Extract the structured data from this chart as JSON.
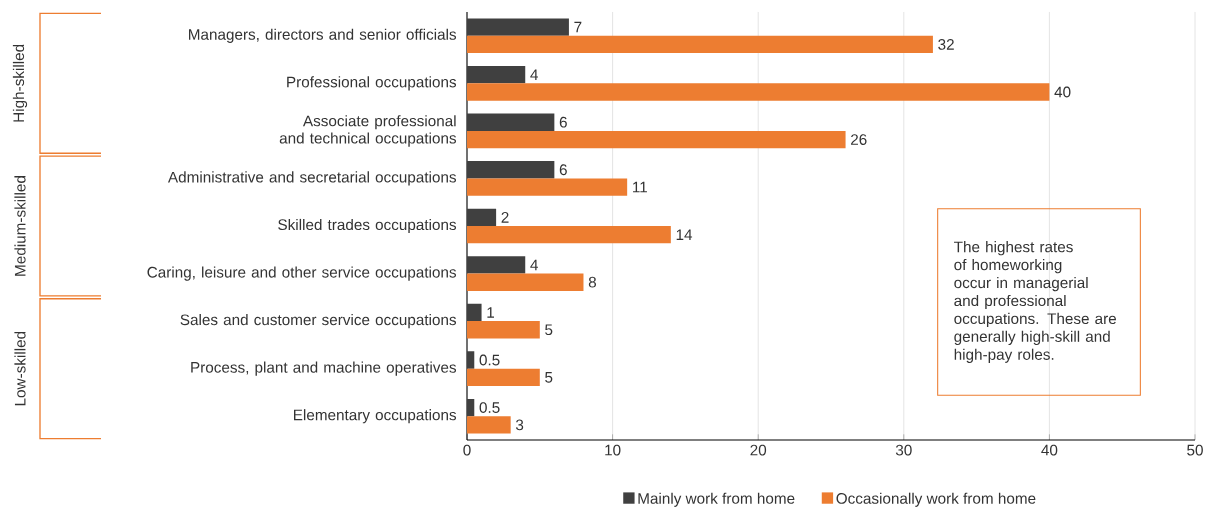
{
  "chart_data": {
    "type": "bar",
    "orientation": "horizontal",
    "categories": [
      "Managers, directors and senior officials",
      "Professional occupations",
      "Associate professional and technical occupations",
      "Administrative and secretarial occupations",
      "Skilled trades occupations",
      "Caring, leisure and other service occupations",
      "Sales and customer service occupations",
      "Process, plant and machine operatives",
      "Elementary occupations"
    ],
    "series": [
      {
        "name": "Mainly work from home",
        "color": "#404040",
        "values": [
          7,
          4,
          6,
          6,
          2,
          4,
          1,
          0.5,
          0.5
        ]
      },
      {
        "name": "Occasionally work from home",
        "color": "#ed7d31",
        "values": [
          32,
          40,
          26,
          11,
          14,
          8,
          5,
          5,
          3
        ]
      }
    ],
    "xlim": [
      0,
      50
    ],
    "xticks": [
      0,
      10,
      20,
      30,
      40,
      50
    ],
    "grid": "x",
    "legend": "bottom",
    "data_labels": true,
    "annotations": [
      "High-skilled",
      "Medium-skilled",
      "Low-skilled",
      "The highest rates of homeworking occur in managerial and professional occupations. These are generally high-skill and high-pay roles."
    ]
  }
}
